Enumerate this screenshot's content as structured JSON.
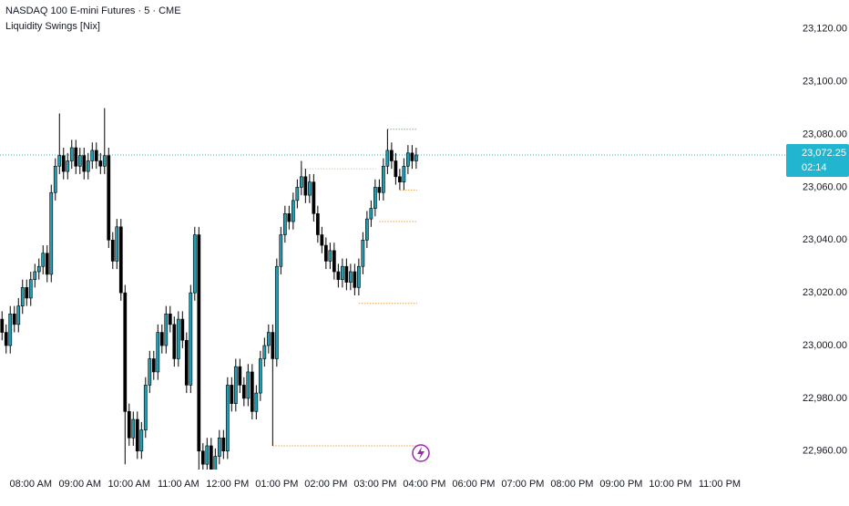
{
  "chart_data": {
    "type": "candlestick",
    "title": "NASDAQ 100 E-mini Futures · 5 · CME",
    "subtitle": "Liquidity Swings [Nix]",
    "up_color": "#1f9db3",
    "down_color": "#000000",
    "xlim": [
      -0.5,
      191
    ],
    "ylim": [
      22953,
      23131
    ],
    "xticks": [
      {
        "value": 7,
        "label": "08:00 AM"
      },
      {
        "value": 19,
        "label": "09:00 AM"
      },
      {
        "value": 31,
        "label": "10:00 AM"
      },
      {
        "value": 43,
        "label": "11:00 AM"
      },
      {
        "value": 55,
        "label": "12:00 PM"
      },
      {
        "value": 67,
        "label": "01:00 PM"
      },
      {
        "value": 79,
        "label": "02:00 PM"
      },
      {
        "value": 91,
        "label": "03:00 PM"
      },
      {
        "value": 103,
        "label": "04:00 PM"
      },
      {
        "value": 115,
        "label": "06:00 PM"
      },
      {
        "value": 127,
        "label": "07:00 PM"
      },
      {
        "value": 139,
        "label": "08:00 PM"
      },
      {
        "value": 151,
        "label": "09:00 PM"
      },
      {
        "value": 163,
        "label": "10:00 PM"
      },
      {
        "value": 175,
        "label": "11:00 PM"
      }
    ],
    "yticks": [
      {
        "value": 22960,
        "label": "22,960.00"
      },
      {
        "value": 22980,
        "label": "22,980.00"
      },
      {
        "value": 23000,
        "label": "23,000.00"
      },
      {
        "value": 23020,
        "label": "23,020.00"
      },
      {
        "value": 23040,
        "label": "23,040.00"
      },
      {
        "value": 23060,
        "label": "23,060.00"
      },
      {
        "value": 23080,
        "label": "23,080.00"
      },
      {
        "value": 23100,
        "label": "23,100.00"
      },
      {
        "value": 23120,
        "label": "23,120.00"
      }
    ],
    "open": [
      23010,
      23005,
      23000,
      23012,
      23008,
      23015,
      23022,
      23018,
      23025,
      23028,
      23030,
      23035,
      23027,
      23058,
      23068,
      23072,
      23066,
      23070,
      23075,
      23068,
      23072,
      23066,
      23070,
      23074,
      23070,
      23068,
      23072,
      23040,
      23032,
      23045,
      23020,
      22975,
      22965,
      22972,
      22960,
      22968,
      22985,
      22995,
      22990,
      23005,
      23000,
      23012,
      23008,
      22995,
      23010,
      23002,
      22985,
      23020,
      23042,
      22960,
      22955,
      22962,
      22950,
      22958,
      22965,
      22960,
      22985,
      22978,
      22992,
      22985,
      22980,
      22990,
      22975,
      22982,
      22995,
      23000,
      23005,
      22995,
      23030,
      23042,
      23050,
      23047,
      23055,
      23060,
      23064,
      23057,
      23062,
      23050,
      23042,
      23038,
      23032,
      23036,
      23028,
      23025,
      23030,
      23024,
      23028,
      23022,
      23030,
      23040,
      23048,
      23052,
      23060,
      23058,
      23068,
      23074,
      23070,
      23064,
      23062,
      23068,
      23073,
      23070
    ],
    "high": [
      23013,
      23008,
      23015,
      23015,
      23018,
      23025,
      23025,
      23028,
      23031,
      23033,
      23038,
      23038,
      23061,
      23071,
      23088,
      23075,
      23073,
      23078,
      23078,
      23075,
      23075,
      23073,
      23077,
      23077,
      23073,
      23090,
      23075,
      23043,
      23048,
      23048,
      23023,
      22978,
      22975,
      22975,
      22971,
      22988,
      22998,
      22998,
      23008,
      23008,
      23015,
      23015,
      23011,
      23013,
      23013,
      23005,
      23023,
      23045,
      23045,
      22963,
      22965,
      22965,
      22961,
      22968,
      22968,
      22988,
      22988,
      22995,
      22995,
      22988,
      22993,
      22993,
      22985,
      22998,
      23003,
      23008,
      23008,
      23033,
      23045,
      23053,
      23053,
      23058,
      23063,
      23070,
      23067,
      23065,
      23065,
      23053,
      23045,
      23041,
      23039,
      23039,
      23031,
      23033,
      23033,
      23031,
      23031,
      23033,
      23043,
      23051,
      23055,
      23063,
      23063,
      23071,
      23082,
      23077,
      23073,
      23067,
      23071,
      23076,
      23076,
      23075
    ],
    "low": [
      23002,
      22997,
      22997,
      23005,
      23005,
      23012,
      23015,
      23015,
      23022,
      23025,
      23027,
      23024,
      23024,
      23055,
      23065,
      23063,
      23063,
      23067,
      23065,
      23065,
      23063,
      23063,
      23067,
      23067,
      23065,
      23065,
      23037,
      23029,
      23029,
      23017,
      22955,
      22962,
      22962,
      22957,
      22957,
      22965,
      22982,
      22987,
      22987,
      22997,
      22997,
      23005,
      22992,
      22992,
      22999,
      22982,
      22982,
      23017,
      22950,
      22952,
      22952,
      22947,
      22947,
      22955,
      22957,
      22957,
      22975,
      22975,
      22982,
      22977,
      22977,
      22972,
      22972,
      22979,
      22992,
      22997,
      22962,
      22992,
      23027,
      23039,
      23044,
      23044,
      23052,
      23057,
      23054,
      23054,
      23047,
      23039,
      23035,
      23029,
      23029,
      23025,
      23022,
      23022,
      23021,
      23021,
      23019,
      23019,
      23027,
      23037,
      23045,
      23049,
      23055,
      23055,
      23065,
      23067,
      23061,
      23059,
      23059,
      23065,
      23067,
      23067
    ],
    "close": [
      23005,
      23000,
      23012,
      23008,
      23015,
      23022,
      23018,
      23025,
      23028,
      23030,
      23035,
      23027,
      23058,
      23068,
      23072,
      23066,
      23070,
      23075,
      23068,
      23072,
      23066,
      23070,
      23074,
      23070,
      23068,
      23072,
      23040,
      23032,
      23045,
      23020,
      22975,
      22965,
      22972,
      22960,
      22968,
      22985,
      22995,
      22990,
      23005,
      23000,
      23012,
      23008,
      22995,
      23010,
      23002,
      22985,
      23020,
      23042,
      22960,
      22955,
      22962,
      22950,
      22958,
      22965,
      22960,
      22985,
      22978,
      22992,
      22985,
      22980,
      22990,
      22975,
      22982,
      22995,
      23000,
      23005,
      22995,
      23030,
      23042,
      23050,
      23047,
      23055,
      23060,
      23064,
      23057,
      23062,
      23050,
      23042,
      23038,
      23032,
      23036,
      23028,
      23025,
      23030,
      23024,
      23028,
      23022,
      23030,
      23040,
      23048,
      23052,
      23060,
      23058,
      23068,
      23074,
      23070,
      23064,
      23062,
      23068,
      23073,
      23070,
      23072.25
    ],
    "levels": [
      {
        "start": 66,
        "end": 101,
        "value": 22962,
        "color": "#f0a040"
      },
      {
        "start": 87,
        "end": 101,
        "value": 23016,
        "color": "#f0a040"
      },
      {
        "start": 92,
        "end": 101,
        "value": 23047,
        "color": "#f0a040"
      },
      {
        "start": 97,
        "end": 101,
        "value": 23059,
        "color": "#f0a040"
      },
      {
        "start": 94,
        "end": 101,
        "value": 23082,
        "color": "#7cb87c"
      },
      {
        "start": 73,
        "end": 91,
        "value": 23067,
        "color": "#d8c7a8"
      }
    ],
    "last_price": {
      "value": 23072.25,
      "label": "23,072.25"
    },
    "countdown": "02:14",
    "last_color": "#22b5cf"
  }
}
